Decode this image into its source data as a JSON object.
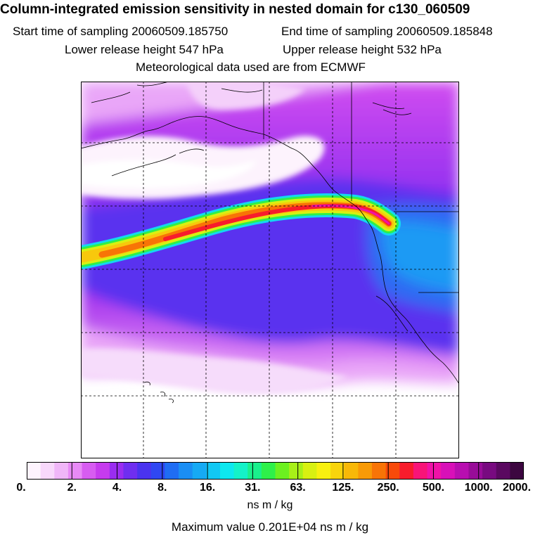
{
  "title": "Column-integrated emission sensitivity in nested domain for c130_060509",
  "header": {
    "start_label": "Start time of sampling 20060509.185750",
    "end_label": "End time of sampling 20060509.185848",
    "lower_label": "Lower release height  547 hPa",
    "upper_label": "Upper release height  532 hPa",
    "met_label": "Meteorological data used are from ECMWF"
  },
  "colorbar": {
    "ticks": [
      "0.",
      "2.",
      "4.",
      "8.",
      "16.",
      "31.",
      "63.",
      "125.",
      "250.",
      "500.",
      "1000.",
      "2000."
    ],
    "colors": [
      "#fdf3fd",
      "#f8d8fb",
      "#f0b6f8",
      "#e88af6",
      "#d75cf1",
      "#c63bee",
      "#9a2df0",
      "#6f2ef0",
      "#4a33ef",
      "#2f47f2",
      "#1f6df3",
      "#1a8ef4",
      "#16aaf4",
      "#12c8f3",
      "#0de8ef",
      "#14f2c8",
      "#1af08c",
      "#2ef04a",
      "#6cf020",
      "#a8f018",
      "#d8f012",
      "#f8f010",
      "#f8d40c",
      "#f8b808",
      "#f89a06",
      "#f87406",
      "#f84a0a",
      "#f81c2c",
      "#f81478",
      "#f012a8",
      "#d810b8",
      "#b80eb0",
      "#980c98",
      "#780a80",
      "#5a0860",
      "#3c0640"
    ],
    "units": "ns m / kg"
  },
  "maximum_label": "Maximum value  0.201E+04 ns m / kg"
}
